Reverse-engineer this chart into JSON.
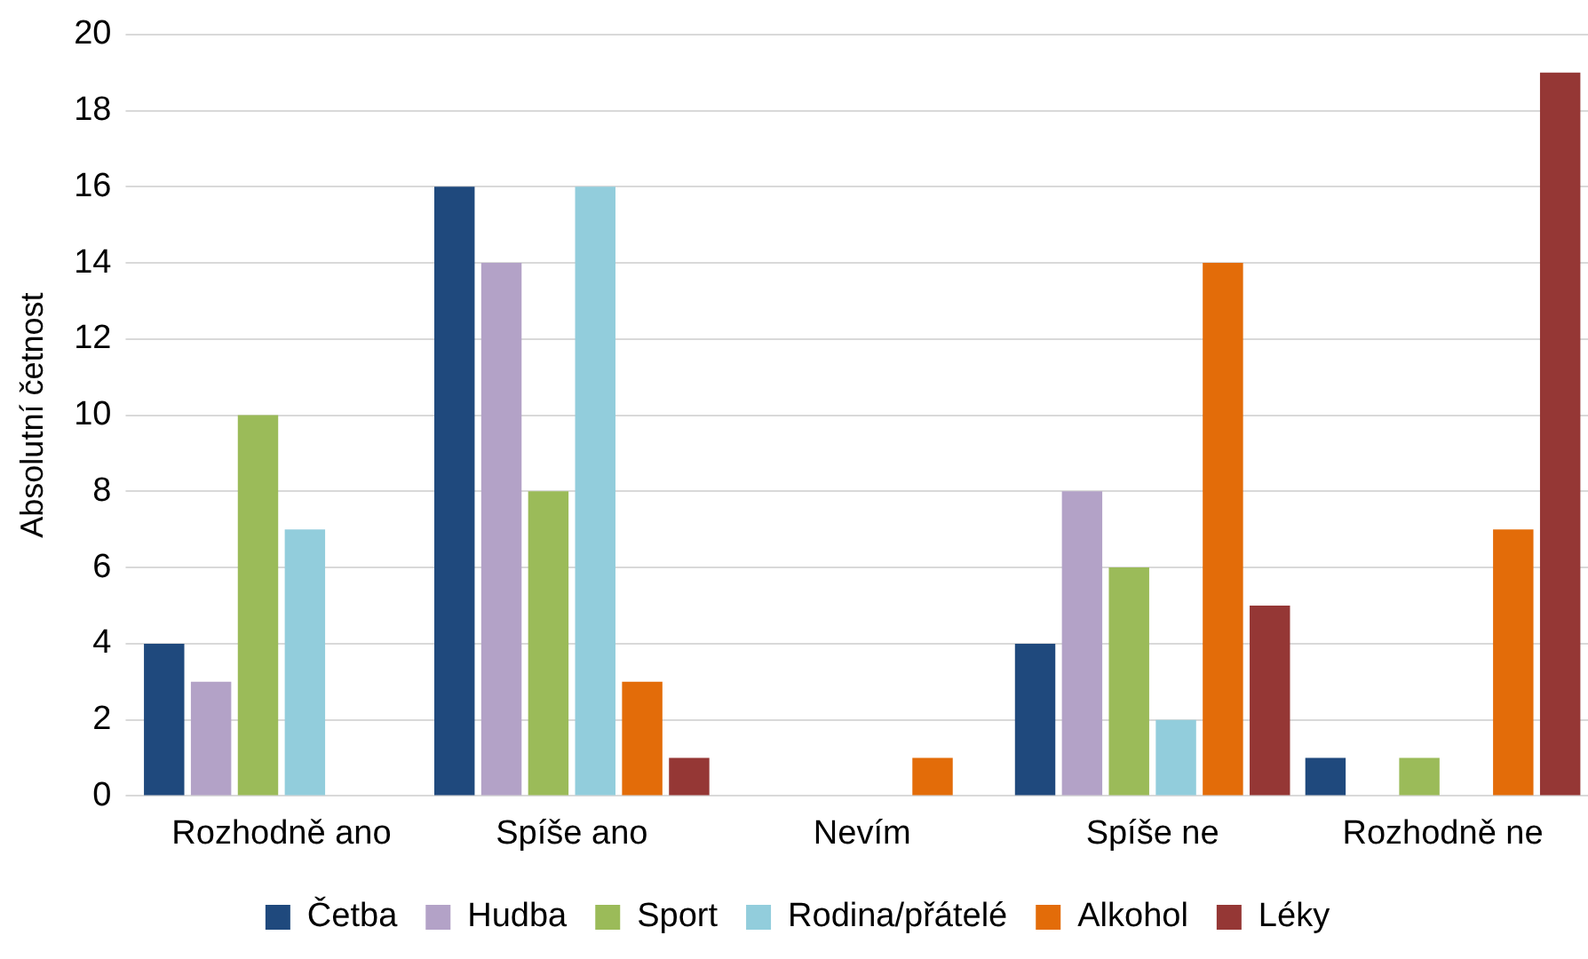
{
  "chart_data": {
    "type": "bar",
    "ylabel": "Absolutní četnost",
    "categories": [
      "Rozhodně ano",
      "Spíše ano",
      "Nevím",
      "Spíše ne",
      "Rozhodně ne"
    ],
    "series": [
      {
        "name": "Četba",
        "color": "#1f497d",
        "values": [
          4,
          16,
          0,
          4,
          1
        ]
      },
      {
        "name": "Hudba",
        "color": "#b3a2c7",
        "values": [
          3,
          14,
          0,
          8,
          0
        ]
      },
      {
        "name": "Sport",
        "color": "#9bbb59",
        "values": [
          10,
          8,
          0,
          6,
          1
        ]
      },
      {
        "name": "Rodina/přátelé",
        "color": "#92cddc",
        "values": [
          7,
          16,
          0,
          2,
          0
        ]
      },
      {
        "name": "Alkohol",
        "color": "#e36c09",
        "values": [
          0,
          3,
          1,
          14,
          7
        ]
      },
      {
        "name": "Léky",
        "color": "#953735",
        "values": [
          0,
          1,
          0,
          5,
          19
        ]
      }
    ],
    "ylim": [
      0,
      20
    ],
    "yticks": [
      0,
      2,
      4,
      6,
      8,
      10,
      12,
      14,
      16,
      18,
      20
    ],
    "grid": "y",
    "legend": "bottom"
  }
}
